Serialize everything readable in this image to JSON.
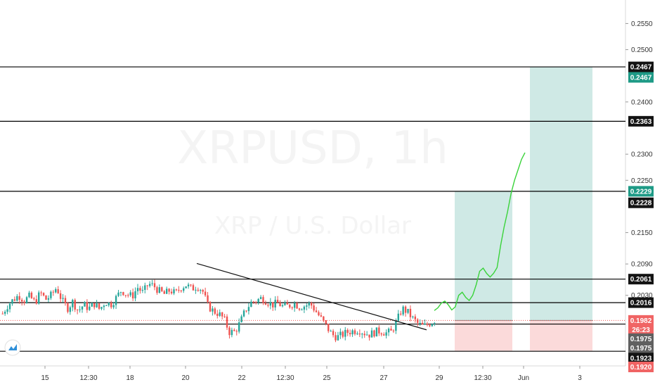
{
  "watermark": {
    "symbol": "XRPUSD, 1h",
    "name": "XRP / U.S. Dollar"
  },
  "colors": {
    "up": "#26a69a",
    "down": "#ef5350",
    "target_zone": "#cfe9e5",
    "stop_zone": "#fbdada",
    "projection": "#39d339",
    "trendline": "#111111",
    "level_line": "#000000",
    "price_line": "#ef5350",
    "tag_teal": "#1e9a86",
    "tag_red": "#f06464",
    "tag_gray": "#606060",
    "tag_black": "#131313"
  },
  "chart_data": {
    "type": "candlestick",
    "symbol": "XRPUSD",
    "timeframe": "1h",
    "y_range": [
      0.1895,
      0.2595
    ],
    "y_ticks": [
      "0.2550",
      "0.2500",
      "0.2400",
      "0.2300",
      "0.2250",
      "0.2150",
      "0.2090",
      "0.2030"
    ],
    "x_ticks": [
      "15",
      "12:30",
      "18",
      "20",
      "22",
      "12:30",
      "25",
      "27",
      "29",
      "12:30",
      "Jun",
      "3"
    ],
    "horizontal_levels": [
      0.2467,
      0.2363,
      0.2229,
      0.2061,
      0.2016,
      0.1975,
      0.1923
    ],
    "last_price": 0.1982,
    "countdown": "26:23",
    "price_tags": [
      {
        "label": "0.2467",
        "value": 0.2467,
        "style": "black"
      },
      {
        "label": "0.2467",
        "value": 0.2447,
        "style": "teal"
      },
      {
        "label": "0.2363",
        "value": 0.2363,
        "style": "black"
      },
      {
        "label": "0.2229",
        "value": 0.2229,
        "style": "teal"
      },
      {
        "label": "0.2228",
        "value": 0.2207,
        "style": "black"
      },
      {
        "label": "0.2061",
        "value": 0.2061,
        "style": "black"
      },
      {
        "label": "0.2016",
        "value": 0.2016,
        "style": "black"
      },
      {
        "label": "0.1982",
        "value": 0.1982,
        "style": "red"
      },
      {
        "label": "26:23",
        "value": 0.1964,
        "style": "red"
      },
      {
        "label": "0.1975",
        "value": 0.1947,
        "style": "gray"
      },
      {
        "label": "0.1975",
        "value": 0.1929,
        "style": "gray"
      },
      {
        "label": "0.1923",
        "value": 0.191,
        "style": "black"
      },
      {
        "label": "0.1920",
        "value": 0.1893,
        "style": "red"
      }
    ],
    "positions": [
      {
        "entry": 0.1982,
        "target": 0.2229,
        "stop": 0.1924
      },
      {
        "entry": 0.1982,
        "target": 0.2467,
        "stop": 0.1924
      }
    ],
    "trendline": {
      "from": 0.2091,
      "to": 0.1964
    },
    "projection_path": [
      0.2001,
      0.2006,
      0.2015,
      0.2019,
      0.2012,
      0.2002,
      0.2008,
      0.203,
      0.2036,
      0.2026,
      0.202,
      0.203,
      0.205,
      0.2076,
      0.2082,
      0.2072,
      0.2065,
      0.2072,
      0.2083,
      0.2125,
      0.216,
      0.219,
      0.2225,
      0.225,
      0.227,
      0.229,
      0.2303
    ],
    "candle_close_path": [
      0.1995,
      0.2012,
      0.2022,
      0.203,
      0.202,
      0.2028,
      0.2016,
      0.2035,
      0.2022,
      0.203,
      0.2045,
      0.202,
      0.2005,
      0.2018,
      0.2,
      0.2012,
      0.2005,
      0.2014,
      0.2003,
      0.2018,
      0.2012,
      0.2025,
      0.204,
      0.2032,
      0.2028,
      0.2045,
      0.2035,
      0.2052,
      0.2048,
      0.2038,
      0.2032,
      0.204,
      0.2033,
      0.2045,
      0.205,
      0.2042,
      0.2048,
      0.204,
      0.201,
      0.2,
      0.1995,
      0.1985,
      0.196,
      0.196,
      0.1978,
      0.2002,
      0.2016,
      0.202,
      0.2025,
      0.2018,
      0.2012,
      0.2015,
      0.2008,
      0.201,
      0.2015,
      0.2008,
      0.201,
      0.2014,
      0.2,
      0.1985,
      0.197,
      0.1955,
      0.195,
      0.1955,
      0.196,
      0.1962,
      0.1964,
      0.1958,
      0.1955,
      0.196,
      0.1962,
      0.1958,
      0.196,
      0.198,
      0.2005,
      0.1998,
      0.1985,
      0.1975,
      0.197,
      0.1976,
      0.1982
    ]
  }
}
